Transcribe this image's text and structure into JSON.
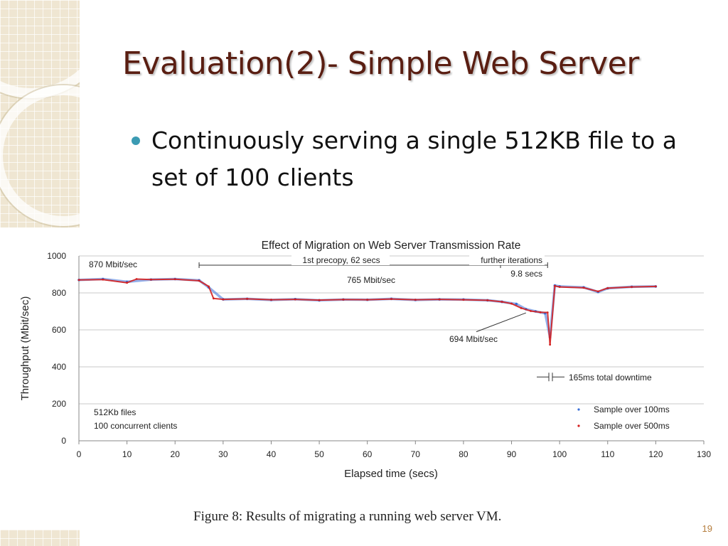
{
  "slide": {
    "title": "Evaluation(2)- Simple Web Server",
    "bullets": [
      "Continuously serving a single 512KB file to a set of 100 clients"
    ],
    "caption": "Figure 8: Results of migrating a running web server VM.",
    "page_number": "19"
  },
  "chart_data": {
    "type": "scatter",
    "title": "Effect of Migration on Web Server Transmission Rate",
    "xlabel": "Elapsed time (secs)",
    "ylabel": "Throughput (Mbit/sec)",
    "xlim": [
      0,
      130
    ],
    "ylim": [
      0,
      1000
    ],
    "x_ticks": [
      0,
      10,
      20,
      30,
      40,
      50,
      60,
      70,
      80,
      90,
      100,
      110,
      120,
      130
    ],
    "y_ticks": [
      0,
      200,
      400,
      600,
      800,
      1000
    ],
    "grid": "horizontal",
    "legend_position": "bottom-right",
    "series": [
      {
        "name": "Sample over 100ms",
        "color": "#3a6fd8",
        "x": [
          0,
          5,
          10,
          15,
          20,
          25,
          27,
          30,
          35,
          40,
          45,
          50,
          55,
          60,
          65,
          70,
          75,
          80,
          85,
          88,
          91,
          93,
          95,
          97,
          98,
          99,
          100,
          105,
          108,
          110,
          115,
          120
        ],
        "y": [
          870,
          875,
          860,
          872,
          875,
          868,
          830,
          765,
          768,
          762,
          766,
          760,
          764,
          763,
          768,
          762,
          765,
          764,
          760,
          752,
          740,
          712,
          700,
          690,
          560,
          840,
          835,
          830,
          805,
          825,
          833,
          835
        ]
      },
      {
        "name": "Sample over 500ms",
        "color": "#d42020",
        "x": [
          0,
          5,
          10,
          12,
          15,
          20,
          25,
          27,
          28,
          30,
          35,
          40,
          45,
          50,
          55,
          60,
          65,
          70,
          75,
          80,
          85,
          88,
          90,
          92,
          94,
          96,
          97.5,
          98,
          99,
          100,
          105,
          108,
          110,
          115,
          120
        ],
        "y": [
          870,
          872,
          855,
          875,
          872,
          874,
          866,
          835,
          770,
          765,
          768,
          763,
          765,
          761,
          764,
          763,
          767,
          763,
          765,
          763,
          760,
          752,
          742,
          718,
          702,
          695,
          694,
          520,
          838,
          832,
          828,
          808,
          826,
          832,
          835
        ]
      }
    ],
    "annotations": [
      "870 Mbit/sec",
      "1st precopy, 62 secs",
      "further iterations",
      "9.8 secs",
      "765 Mbit/sec",
      "694 Mbit/sec",
      "165ms total downtime",
      "512Kb files",
      "100 concurrent clients"
    ]
  }
}
